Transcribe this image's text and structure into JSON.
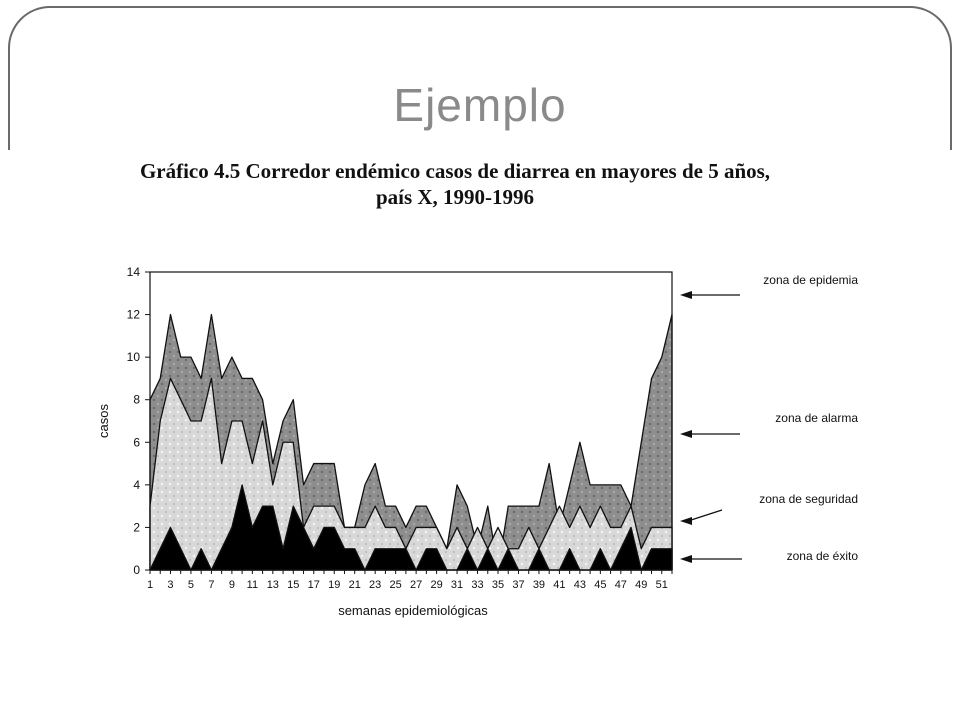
{
  "slide": {
    "title": "Ejemplo"
  },
  "chart_data": {
    "type": "area",
    "title_line1": "Gráfico 4.5 Corredor endémico casos de diarrea en mayores de 5 años,",
    "title_line2": "país X, 1990-1996",
    "xlabel": "semanas epidemiológicas",
    "ylabel": "casos",
    "ylim": [
      0,
      14
    ],
    "xlim": [
      1,
      52
    ],
    "yticks": [
      0,
      2,
      4,
      6,
      8,
      10,
      12,
      14
    ],
    "xticks": [
      1,
      3,
      5,
      7,
      9,
      11,
      13,
      15,
      17,
      19,
      21,
      23,
      25,
      27,
      29,
      31,
      33,
      35,
      37,
      39,
      41,
      43,
      45,
      47,
      49,
      51
    ],
    "x": [
      1,
      2,
      3,
      4,
      5,
      6,
      7,
      8,
      9,
      10,
      11,
      12,
      13,
      14,
      15,
      16,
      17,
      18,
      19,
      20,
      21,
      22,
      23,
      24,
      25,
      26,
      27,
      28,
      29,
      30,
      31,
      32,
      33,
      34,
      35,
      36,
      37,
      38,
      39,
      40,
      41,
      42,
      43,
      44,
      45,
      46,
      47,
      48,
      49,
      50,
      51,
      52
    ],
    "series": [
      {
        "name": "zona de éxito",
        "color": "#000000",
        "values": [
          0,
          1,
          2,
          1,
          0,
          1,
          0,
          1,
          2,
          4,
          2,
          3,
          3,
          1,
          3,
          2,
          1,
          2,
          2,
          1,
          1,
          0,
          1,
          1,
          1,
          1,
          0,
          1,
          1,
          0,
          0,
          1,
          0,
          1,
          0,
          1,
          0,
          0,
          1,
          0,
          0,
          1,
          0,
          0,
          1,
          0,
          1,
          2,
          0,
          1,
          1,
          1
        ]
      },
      {
        "name": "zona de seguridad",
        "color": "#d4d4d4",
        "values": [
          3,
          7,
          9,
          8,
          7,
          7,
          9,
          5,
          7,
          7,
          5,
          7,
          4,
          6,
          6,
          2,
          3,
          3,
          3,
          2,
          2,
          2,
          3,
          2,
          2,
          1,
          2,
          2,
          2,
          1,
          2,
          1,
          2,
          1,
          2,
          1,
          1,
          2,
          1,
          2,
          3,
          2,
          3,
          2,
          3,
          2,
          2,
          3,
          1,
          2,
          2,
          2
        ]
      },
      {
        "name": "zona de alarma",
        "color": "#8e8e8e",
        "values": [
          8,
          9,
          12,
          10,
          10,
          9,
          12,
          9,
          10,
          9,
          9,
          8,
          5,
          7,
          8,
          4,
          5,
          5,
          5,
          2,
          2,
          4,
          5,
          3,
          3,
          2,
          3,
          3,
          2,
          1,
          4,
          3,
          1,
          3,
          0,
          3,
          3,
          3,
          3,
          5,
          2,
          4,
          6,
          4,
          4,
          4,
          4,
          3,
          6,
          9,
          10,
          12
        ]
      }
    ],
    "zones": [
      "zona de epidemia",
      "zona de alarma",
      "zona de seguridad",
      "zona de éxito"
    ]
  }
}
